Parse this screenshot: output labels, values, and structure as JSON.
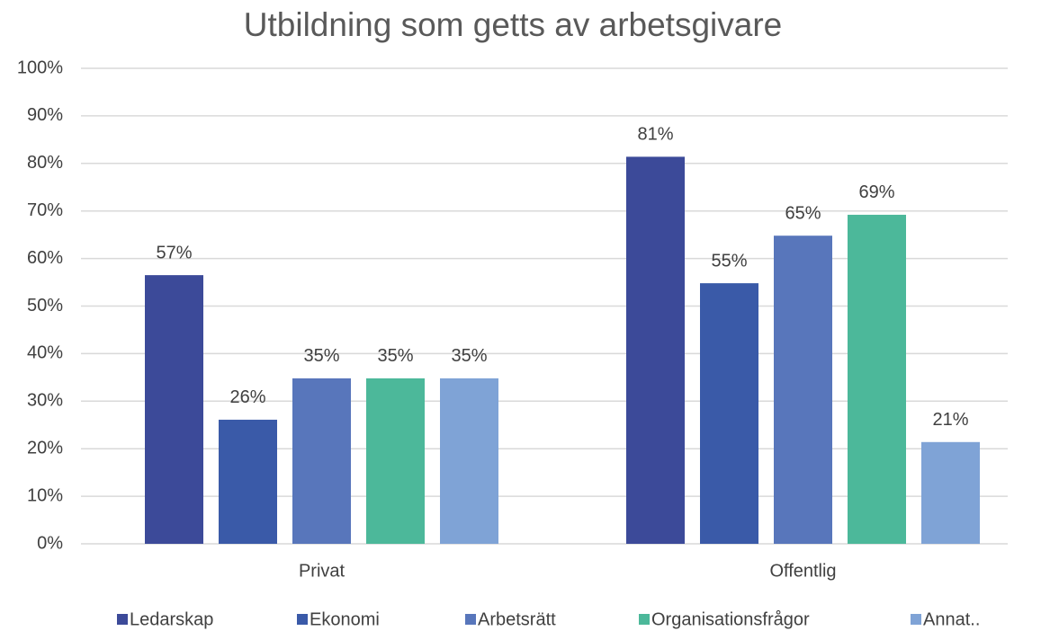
{
  "chart_data": {
    "type": "bar",
    "title": "Utbildning som getts av arbetsgivare",
    "categories": [
      "Privat",
      "Offentlig"
    ],
    "series": [
      {
        "name": "Ledarskap",
        "color": "#3c4a99",
        "values": [
          56.5,
          81.4
        ],
        "value_labels": [
          "57%",
          "81%"
        ]
      },
      {
        "name": "Ekonomi",
        "color": "#3a5aa8",
        "values": [
          26.1,
          54.8
        ],
        "value_labels": [
          "26%",
          "55%"
        ]
      },
      {
        "name": "Arbetsrätt",
        "color": "#5876bb",
        "values": [
          34.8,
          64.8
        ],
        "value_labels": [
          "35%",
          "65%"
        ]
      },
      {
        "name": "Organisationsfrågor",
        "color": "#4cb89a",
        "values": [
          34.8,
          69.2
        ],
        "value_labels": [
          "35%",
          "69%"
        ]
      },
      {
        "name": "Annat..",
        "color": "#7fa3d6",
        "values": [
          34.8,
          21.4
        ],
        "value_labels": [
          "35%",
          "21%"
        ]
      }
    ],
    "ylim": [
      0,
      100
    ],
    "yticks": [
      {
        "value": 0,
        "label": "0%"
      },
      {
        "value": 10,
        "label": "10%"
      },
      {
        "value": 20,
        "label": "20%"
      },
      {
        "value": 30,
        "label": "30%"
      },
      {
        "value": 40,
        "label": "40%"
      },
      {
        "value": 50,
        "label": "50%"
      },
      {
        "value": 60,
        "label": "60%"
      },
      {
        "value": 70,
        "label": "70%"
      },
      {
        "value": 80,
        "label": "80%"
      },
      {
        "value": 90,
        "label": "90%"
      },
      {
        "value": 100,
        "label": "100%"
      }
    ],
    "grid": true,
    "legend": "bottom"
  }
}
